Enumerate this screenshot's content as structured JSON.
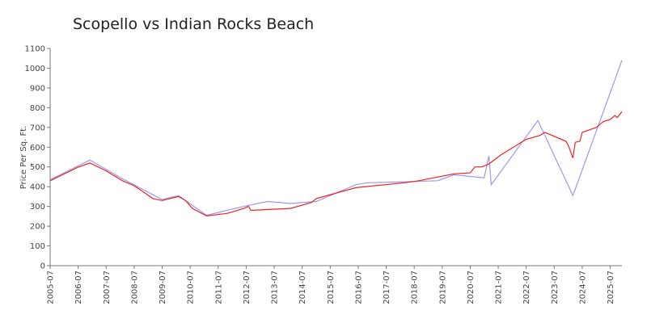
{
  "chart_data": {
    "type": "line",
    "title": "Scopello vs Indian Rocks Beach",
    "y_label": "Price Per Sq. Ft.",
    "xlim": [
      "2005-07",
      "2025-12"
    ],
    "xticks": [
      "2005-07",
      "2006-07",
      "2007-07",
      "2008-07",
      "2009-07",
      "2010-07",
      "2011-07",
      "2012-07",
      "2013-07",
      "2014-07",
      "2015-07",
      "2016-07",
      "2017-07",
      "2018-07",
      "2019-07",
      "2020-07",
      "2021-07",
      "2022-07",
      "2023-07",
      "2024-07",
      "2025-07"
    ],
    "ylim": [
      0,
      1100
    ],
    "yticks": [
      0,
      100,
      200,
      300,
      400,
      500,
      600,
      700,
      800,
      900,
      1000,
      1100
    ],
    "series": [
      {
        "color": "#9999ee",
        "x": [
          "2005-07",
          "2006-12",
          "2008-02",
          "2009-07",
          "2010-02",
          "2011-02",
          "2012-06",
          "2013-04",
          "2014-02",
          "2015-01",
          "2016-06",
          "2016-11",
          "2018-03",
          "2019-05",
          "2019-12",
          "2021-01",
          "2021-03",
          "2021-04",
          "2022-12",
          "2024-03",
          "2025-12"
        ],
        "values": [
          435,
          535,
          440,
          335,
          355,
          255,
          300,
          325,
          315,
          325,
          410,
          420,
          425,
          430,
          460,
          445,
          555,
          410,
          735,
          355,
          1040
        ]
      },
      {
        "color": "#ee2222",
        "x": [
          "2005-07",
          "2006-07",
          "2006-12",
          "2007-07",
          "2008-02",
          "2008-07",
          "2008-12",
          "2009-03",
          "2009-07",
          "2010-02",
          "2010-05",
          "2010-08",
          "2011-02",
          "2011-11",
          "2012-06",
          "2012-08",
          "2012-09",
          "2014-02",
          "2014-11",
          "2015-01",
          "2016-06",
          "2018-03",
          "2018-09",
          "2019-12",
          "2020-07",
          "2020-09",
          "2020-12",
          "2021-03",
          "2021-08",
          "2022-07",
          "2023-01",
          "2023-03",
          "2023-12",
          "2024-01",
          "2024-03",
          "2024-04",
          "2024-06",
          "2024-07",
          "2025-01",
          "2025-04",
          "2025-07",
          "2025-09",
          "2025-10",
          "2025-12"
        ],
        "values": [
          430,
          499,
          520,
          480,
          430,
          405,
          365,
          340,
          330,
          350,
          330,
          290,
          252,
          265,
          290,
          300,
          280,
          290,
          320,
          340,
          395,
          420,
          430,
          465,
          470,
          500,
          500,
          515,
          560,
          640,
          660,
          675,
          630,
          610,
          545,
          625,
          630,
          675,
          700,
          730,
          740,
          760,
          750,
          780
        ]
      }
    ]
  }
}
